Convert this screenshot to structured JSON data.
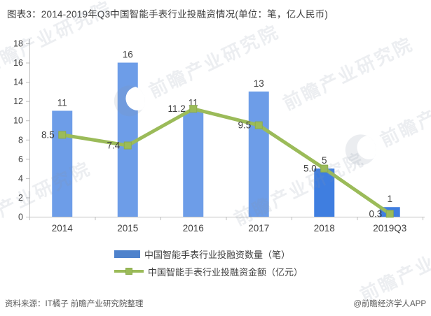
{
  "title": "图表3：2014-2019年Q3中国智能手表行业投融资情况(单位：笔，亿人民币)",
  "chart_data": {
    "type": "combo",
    "title": "2014-2019年Q3中国智能手表行业投融资情况",
    "unit_note": "单位：笔，亿人民币",
    "categories": [
      "2014",
      "2015",
      "2016",
      "2017",
      "2018",
      "2019Q3"
    ],
    "series": [
      {
        "name": "中国智能手表行业投融资数量（笔）",
        "type": "bar",
        "values": [
          11,
          16,
          11,
          13,
          5,
          1
        ],
        "labels": [
          "11",
          "16",
          "11",
          "13",
          "5",
          "1"
        ],
        "bar_colors": [
          "#6d9de8",
          "#6d9de8",
          "#6d9de8",
          "#6d9de8",
          "#3f7ee0",
          "#3f7ee0"
        ]
      },
      {
        "name": "中国智能手表行业投融资金额（亿元）",
        "type": "line",
        "values": [
          8.5,
          7.4,
          11.2,
          9.5,
          5.0,
          0.3
        ],
        "labels": [
          "8.5",
          "7.4",
          "11.2",
          "9.5",
          "5.0",
          "0.3"
        ],
        "color": "#9bbb59"
      }
    ],
    "ylim": [
      0,
      18
    ],
    "ytick_step": 2,
    "yticks": [
      0,
      2,
      4,
      6,
      8,
      10,
      12,
      14,
      16,
      18
    ],
    "grid": false,
    "legend_position": "bottom"
  },
  "footer": {
    "source": "资料来源：IT橘子 前瞻产业研究院整理",
    "credit": "@前瞻经济学人APP"
  },
  "watermark": {
    "text": "前瞻产业研究院"
  },
  "colors": {
    "bar_light": "#6d9de8",
    "bar_dark": "#3f7ee0",
    "line": "#9bbb59",
    "marker_border": "#8cac4e",
    "axis": "#bfbfbf",
    "text": "#404040",
    "source_text": "#595959",
    "legend_bar_swatch": "#4e82cc"
  }
}
